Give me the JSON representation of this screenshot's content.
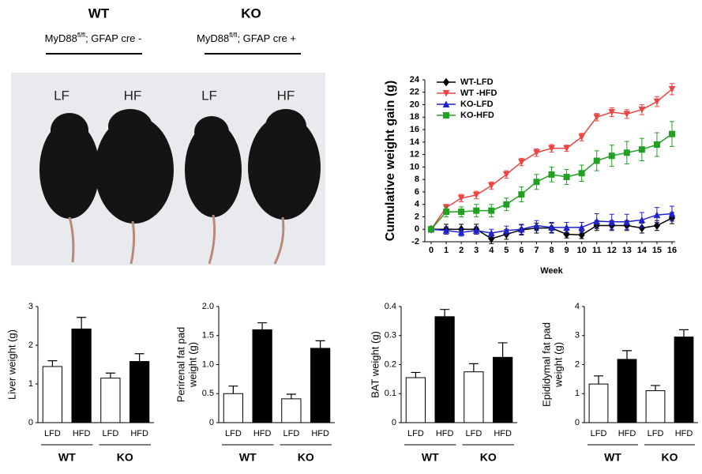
{
  "photo_panel": {
    "groups": [
      {
        "label": "WT",
        "genotype": "MyD88",
        "superscript": "fl/fl",
        "cre": "; GFAP cre -"
      },
      {
        "label": "KO",
        "genotype": "MyD88",
        "superscript": "fl/fl",
        "cre": "; GFAP cre +"
      }
    ],
    "mouse_labels": [
      "LF",
      "HF",
      "LF",
      "HF"
    ]
  },
  "chart_data": [
    {
      "type": "line",
      "ylabel": "Cumulative weight gain (g)",
      "xlabel": "Week",
      "x": [
        0,
        1,
        2,
        3,
        4,
        5,
        6,
        7,
        8,
        9,
        10,
        11,
        12,
        13,
        14,
        15,
        16
      ],
      "xlim": [
        0,
        16
      ],
      "xticks": [
        0,
        1,
        2,
        3,
        4,
        5,
        6,
        7,
        8,
        9,
        10,
        11,
        12,
        13,
        14,
        15,
        16
      ],
      "ylim": [
        -2,
        24
      ],
      "yticks": [
        -2,
        0,
        2,
        4,
        6,
        8,
        10,
        12,
        14,
        16,
        18,
        20,
        22,
        24
      ],
      "legend": "top-left",
      "series": [
        {
          "name": "WT-LFD",
          "color": "#000000",
          "marker": "diamond",
          "values": [
            0,
            0,
            0,
            0,
            -1.5,
            -0.8,
            -0.1,
            0.2,
            0.2,
            -0.8,
            -0.9,
            0.6,
            0.6,
            0.6,
            0.2,
            0.6,
            1.8
          ],
          "errors": [
            0,
            0.8,
            0.8,
            0.8,
            0.8,
            0.8,
            0.8,
            0.8,
            0.8,
            0.6,
            0.6,
            0.8,
            0.8,
            0.8,
            0.8,
            0.8,
            0.9
          ]
        },
        {
          "name": "WT -HFD",
          "color": "#ee4444",
          "marker": "triangle-down",
          "values": [
            0,
            3.5,
            5,
            5.5,
            7,
            8.8,
            10.8,
            12.3,
            13,
            13,
            14.8,
            18,
            18.8,
            18.5,
            19.2,
            20.5,
            22.5
          ],
          "errors": [
            0,
            0.5,
            0.6,
            0.6,
            0.6,
            0.6,
            0.6,
            0.6,
            0.6,
            0.5,
            0.6,
            0.6,
            0.7,
            0.7,
            0.8,
            0.8,
            0.9
          ]
        },
        {
          "name": "KO-LFD",
          "color": "#2222cc",
          "marker": "triangle-up",
          "values": [
            0,
            -0.2,
            -0.5,
            -0.2,
            -0.6,
            -0.2,
            0,
            0.6,
            0.3,
            0.3,
            0.3,
            1.3,
            1.2,
            1.2,
            1.5,
            2.3,
            2.5
          ],
          "errors": [
            0,
            0.6,
            0.6,
            0.6,
            0.6,
            0.7,
            0.8,
            0.8,
            0.8,
            0.8,
            0.8,
            1.2,
            1.2,
            1.2,
            1.2,
            1.2,
            1.2
          ]
        },
        {
          "name": "KO-HFD",
          "color": "#22a022",
          "marker": "square",
          "values": [
            0,
            2.8,
            2.8,
            3,
            3,
            4,
            5.6,
            7.6,
            8.8,
            8.4,
            9,
            11,
            11.8,
            12.3,
            12.8,
            13.6,
            15.3
          ],
          "errors": [
            0,
            0.8,
            0.8,
            1,
            1,
            1,
            1.2,
            1.2,
            1.2,
            1.2,
            1.3,
            1.6,
            1.7,
            1.8,
            1.8,
            1.9,
            2
          ]
        }
      ]
    },
    {
      "type": "bar",
      "ylabel": [
        "Liver weight (g)"
      ],
      "categories": [
        "LFD",
        "HFD",
        "LFD",
        "HFD"
      ],
      "groups": [
        "WT",
        "KO"
      ],
      "values": [
        1.45,
        2.42,
        1.15,
        1.58
      ],
      "errors": [
        0.15,
        0.3,
        0.13,
        0.2
      ],
      "colors": [
        "#ffffff",
        "#000000",
        "#ffffff",
        "#000000"
      ],
      "ylim": [
        0,
        3
      ],
      "yticks": [
        0,
        1,
        2,
        3
      ]
    },
    {
      "type": "bar",
      "ylabel": [
        "Perirenal fat pad",
        "weight (g)"
      ],
      "categories": [
        "LFD",
        "HFD",
        "LFD",
        "HFD"
      ],
      "groups": [
        "WT",
        "KO"
      ],
      "values": [
        0.5,
        1.6,
        0.41,
        1.28
      ],
      "errors": [
        0.13,
        0.12,
        0.08,
        0.13
      ],
      "colors": [
        "#ffffff",
        "#000000",
        "#ffffff",
        "#000000"
      ],
      "ylim": [
        0,
        2
      ],
      "yticks": [
        0,
        0.5,
        {
          "value": 1,
          "label": "1.0"
        },
        1.5,
        {
          "value": 2,
          "label": "2.0"
        }
      ]
    },
    {
      "type": "bar",
      "ylabel": [
        "BAT weight (g)"
      ],
      "categories": [
        "LFD",
        "HFD",
        "LFD",
        "HFD"
      ],
      "groups": [
        "WT",
        "KO"
      ],
      "values": [
        0.155,
        0.365,
        0.175,
        0.225
      ],
      "errors": [
        0.018,
        0.025,
        0.028,
        0.05
      ],
      "colors": [
        "#ffffff",
        "#000000",
        "#ffffff",
        "#000000"
      ],
      "ylim": [
        0,
        0.4
      ],
      "yticks": [
        0,
        0.1,
        0.2,
        0.3,
        0.4
      ]
    },
    {
      "type": "bar",
      "ylabel": [
        "Epididymal fat pad",
        "weight (g)"
      ],
      "categories": [
        "LFD",
        "HFD",
        "LFD",
        "HFD"
      ],
      "groups": [
        "WT",
        "KO"
      ],
      "values": [
        1.33,
        2.18,
        1.1,
        2.95
      ],
      "errors": [
        0.28,
        0.3,
        0.18,
        0.25
      ],
      "colors": [
        "#ffffff",
        "#000000",
        "#ffffff",
        "#000000"
      ],
      "ylim": [
        0,
        4
      ],
      "yticks": [
        0,
        1,
        2,
        3,
        4
      ]
    }
  ]
}
